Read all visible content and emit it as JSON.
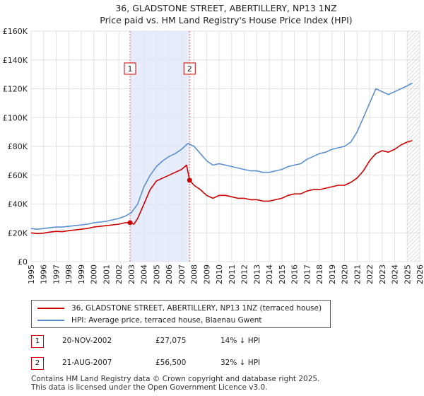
{
  "chart_data": {
    "type": "line",
    "title": "36, GLADSTONE STREET, ABERTILLERY, NP13 1NZ",
    "subtitle": "Price paid vs. HM Land Registry's House Price Index (HPI)",
    "xlim": [
      1995,
      2026
    ],
    "ylim": [
      0,
      160000
    ],
    "x_ticks": [
      "1995",
      "1996",
      "1997",
      "1998",
      "1999",
      "2000",
      "2001",
      "2002",
      "2003",
      "2004",
      "2005",
      "2006",
      "2007",
      "2008",
      "2009",
      "2010",
      "2011",
      "2012",
      "2013",
      "2014",
      "2015",
      "2016",
      "2017",
      "2018",
      "2019",
      "2020",
      "2021",
      "2022",
      "2023",
      "2024",
      "2025",
      "2026"
    ],
    "y_ticks": [
      {
        "value": 0,
        "label": "£0"
      },
      {
        "value": 20000,
        "label": "£20K"
      },
      {
        "value": 40000,
        "label": "£40K"
      },
      {
        "value": 60000,
        "label": "£60K"
      },
      {
        "value": 80000,
        "label": "£80K"
      },
      {
        "value": 100000,
        "label": "£100K"
      },
      {
        "value": 120000,
        "label": "£120K"
      },
      {
        "value": 140000,
        "label": "£140K"
      },
      {
        "value": 160000,
        "label": "£160K"
      }
    ],
    "shaded_region": [
      2002.89,
      2007.64
    ],
    "projection_start": 2025.0,
    "series": [
      {
        "name": "36, GLADSTONE STREET, ABERTILLERY, NP13 1NZ (terraced house)",
        "color": "#cc0000",
        "x": [
          1995.0,
          1995.5,
          1996.0,
          1996.5,
          1997.0,
          1997.5,
          1998.0,
          1998.5,
          1999.0,
          1999.5,
          2000.0,
          2000.5,
          2001.0,
          2001.5,
          2002.0,
          2002.5,
          2002.89,
          2003.2,
          2003.5,
          2004.0,
          2004.5,
          2005.0,
          2005.5,
          2006.0,
          2006.5,
          2007.0,
          2007.4,
          2007.64,
          2008.0,
          2008.5,
          2009.0,
          2009.5,
          2010.0,
          2010.5,
          2011.0,
          2011.5,
          2012.0,
          2012.5,
          2013.0,
          2013.5,
          2014.0,
          2014.5,
          2015.0,
          2015.5,
          2016.0,
          2016.5,
          2017.0,
          2017.5,
          2018.0,
          2018.5,
          2019.0,
          2019.5,
          2020.0,
          2020.5,
          2021.0,
          2021.5,
          2022.0,
          2022.5,
          2023.0,
          2023.5,
          2024.0,
          2024.5,
          2025.0,
          2025.4
        ],
        "values": [
          20000,
          19500,
          19800,
          20500,
          21000,
          20800,
          21500,
          22000,
          22500,
          23000,
          24000,
          24500,
          25000,
          25500,
          26000,
          27000,
          27075,
          26000,
          30000,
          40000,
          50000,
          56000,
          58000,
          60000,
          62000,
          64000,
          67000,
          56500,
          53000,
          50000,
          46000,
          44000,
          46000,
          46000,
          45000,
          44000,
          44000,
          43000,
          43000,
          42000,
          42000,
          43000,
          44000,
          46000,
          47000,
          47000,
          49000,
          50000,
          50000,
          51000,
          52000,
          53000,
          53000,
          55000,
          58000,
          63000,
          70000,
          75000,
          77000,
          76000,
          78000,
          81000,
          83000,
          84000
        ]
      },
      {
        "name": "HPI: Average price, terraced house, Blaenau Gwent",
        "color": "#5b8fd0",
        "x": [
          1995.0,
          1995.5,
          1996.0,
          1996.5,
          1997.0,
          1997.5,
          1998.0,
          1998.5,
          1999.0,
          1999.5,
          2000.0,
          2000.5,
          2001.0,
          2001.5,
          2002.0,
          2002.5,
          2003.0,
          2003.5,
          2004.0,
          2004.5,
          2005.0,
          2005.5,
          2006.0,
          2006.5,
          2007.0,
          2007.5,
          2008.0,
          2008.5,
          2009.0,
          2009.5,
          2010.0,
          2010.5,
          2011.0,
          2011.5,
          2012.0,
          2012.5,
          2013.0,
          2013.5,
          2014.0,
          2014.5,
          2015.0,
          2015.5,
          2016.0,
          2016.5,
          2017.0,
          2017.5,
          2018.0,
          2018.5,
          2019.0,
          2019.5,
          2020.0,
          2020.5,
          2021.0,
          2021.5,
          2022.0,
          2022.5,
          2023.0,
          2023.5,
          2024.0,
          2024.5,
          2025.0,
          2025.4
        ],
        "values": [
          23000,
          22500,
          23000,
          23500,
          24000,
          24000,
          24500,
          25000,
          25500,
          26000,
          27000,
          27500,
          28000,
          29000,
          30000,
          31500,
          34000,
          40000,
          52000,
          60000,
          66000,
          70000,
          73000,
          75000,
          78000,
          82000,
          80000,
          75000,
          70000,
          67000,
          68000,
          67000,
          66000,
          65000,
          64000,
          63000,
          63000,
          62000,
          62000,
          63000,
          64000,
          66000,
          67000,
          68000,
          71000,
          73000,
          75000,
          76000,
          78000,
          79000,
          80000,
          83000,
          90000,
          100000,
          110000,
          120000,
          118000,
          116000,
          118000,
          120000,
          122000,
          124000
        ]
      }
    ],
    "sales": [
      {
        "id": "1",
        "x": 2002.89,
        "value": 27075
      },
      {
        "id": "2",
        "x": 2007.64,
        "value": 56500
      }
    ]
  },
  "legend": {
    "property_label": "36, GLADSTONE STREET, ABERTILLERY, NP13 1NZ (terraced house)",
    "hpi_label": "HPI: Average price, terraced house, Blaenau Gwent",
    "property_color": "#cc0000",
    "hpi_color": "#5b8fd0"
  },
  "transactions": [
    {
      "id": "1",
      "date": "20-NOV-2002",
      "price": "£27,075",
      "hpi": "14% ↓ HPI"
    },
    {
      "id": "2",
      "date": "21-AUG-2007",
      "price": "£56,500",
      "hpi": "32% ↓ HPI"
    }
  ],
  "footer": {
    "line1": "Contains HM Land Registry data © Crown copyright and database right 2025.",
    "line2": "This data is licensed under the Open Government Licence v3.0."
  }
}
